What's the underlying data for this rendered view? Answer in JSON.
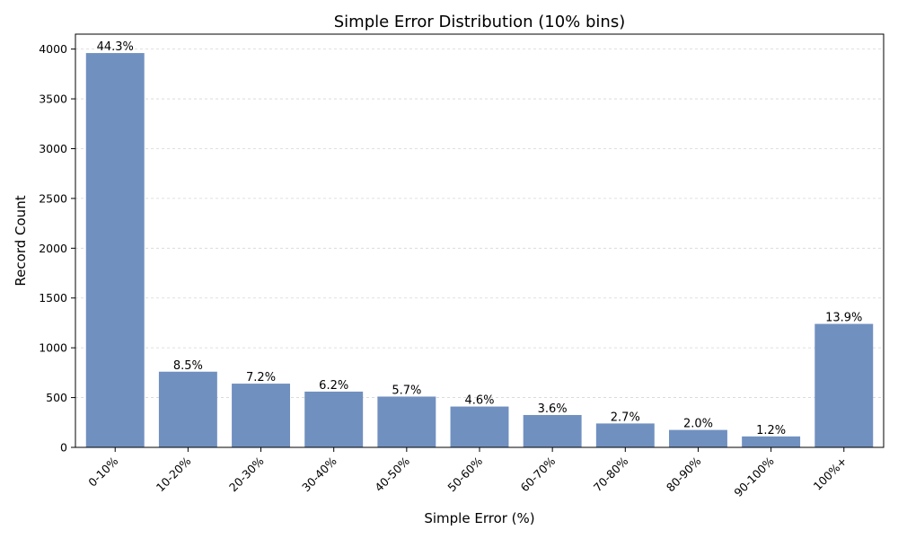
{
  "chart_data": {
    "type": "bar",
    "title": "Simple Error Distribution (10% bins)",
    "xlabel": "Simple Error (%)",
    "ylabel": "Record Count",
    "categories": [
      "0-10%",
      "10-20%",
      "20-30%",
      "30-40%",
      "40-50%",
      "50-60%",
      "60-70%",
      "70-80%",
      "80-90%",
      "90-100%",
      "100%+"
    ],
    "values": [
      3960,
      760,
      640,
      560,
      510,
      410,
      325,
      240,
      175,
      110,
      1240
    ],
    "data_labels": [
      "44.3%",
      "8.5%",
      "7.2%",
      "6.2%",
      "5.7%",
      "4.6%",
      "3.6%",
      "2.7%",
      "2.0%",
      "1.2%",
      "13.9%"
    ],
    "ylim": [
      0,
      4150
    ],
    "yticks": [
      0,
      500,
      1000,
      1500,
      2000,
      2500,
      3000,
      3500,
      4000
    ],
    "grid": "y-dashed",
    "bar_color": "#7090c0"
  }
}
